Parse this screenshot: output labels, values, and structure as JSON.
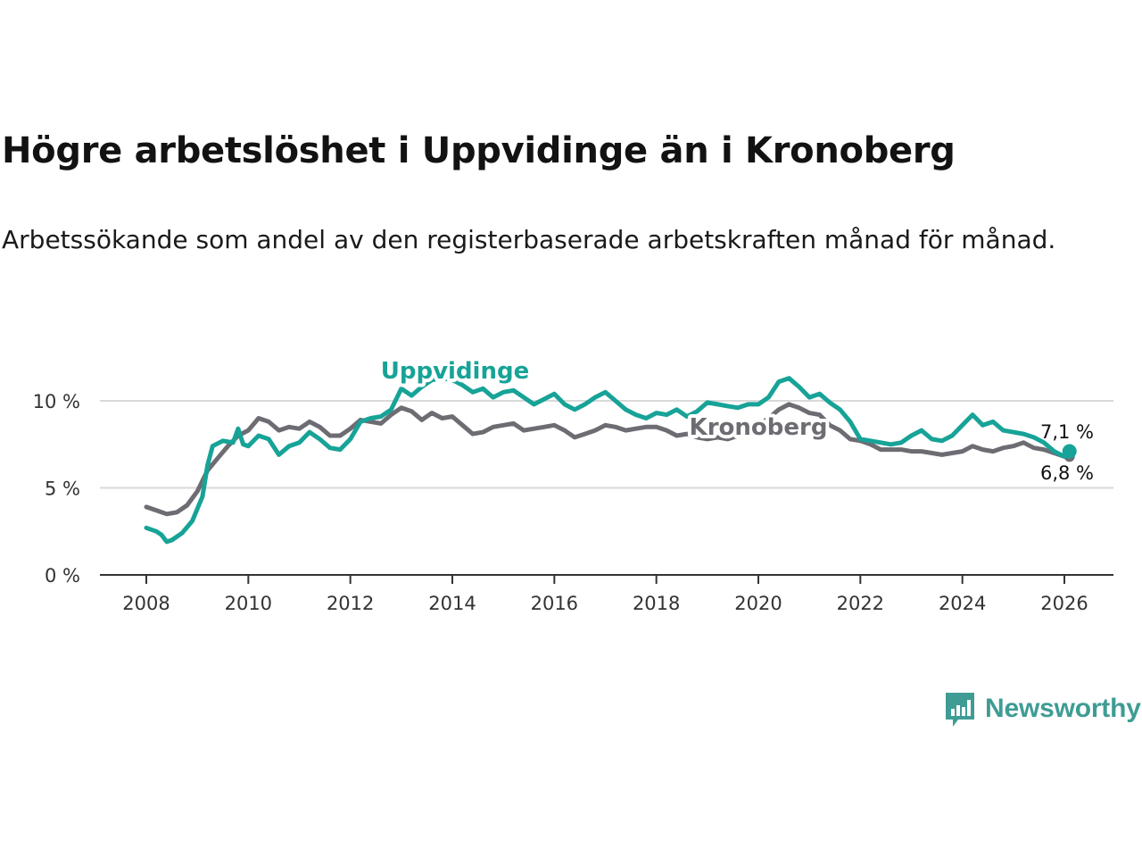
{
  "header": {
    "title": "Högre arbetslöshet i Uppvidinge än i Kronoberg",
    "subtitle": "Arbetssökande som andel av den registerbaserade arbetskraften månad för månad."
  },
  "brand": {
    "name": "Newsworthy",
    "color": "#3f9c94"
  },
  "chart_data": {
    "type": "line",
    "title": "Högre arbetslöshet i Uppvidinge än i Kronoberg",
    "xlabel": "",
    "ylabel": "",
    "xlim": [
      2007.5,
      2027.0
    ],
    "ylim": [
      0,
      10
    ],
    "grid": true,
    "x_ticks": [
      {
        "value": 2008,
        "label": "2008"
      },
      {
        "value": 2010,
        "label": "2010"
      },
      {
        "value": 2012,
        "label": "2012"
      },
      {
        "value": 2014,
        "label": "2014"
      },
      {
        "value": 2016,
        "label": "2016"
      },
      {
        "value": 2018,
        "label": "2018"
      },
      {
        "value": 2020,
        "label": "2020"
      },
      {
        "value": 2022,
        "label": "2022"
      },
      {
        "value": 2024,
        "label": "2024"
      },
      {
        "value": 2026,
        "label": "2026"
      }
    ],
    "y_ticks": [
      {
        "value": 0,
        "label": "0 %"
      },
      {
        "value": 5,
        "label": "5 %"
      },
      {
        "value": 10,
        "label": "10 %"
      }
    ],
    "series": [
      {
        "name": "Kronoberg",
        "color": "#6e6c73",
        "end_label": "6,8 %",
        "points": [
          [
            2008.0,
            3.9
          ],
          [
            2008.2,
            3.7
          ],
          [
            2008.4,
            3.5
          ],
          [
            2008.6,
            3.6
          ],
          [
            2008.8,
            4.0
          ],
          [
            2009.0,
            4.8
          ],
          [
            2009.2,
            6.0
          ],
          [
            2009.4,
            6.7
          ],
          [
            2009.6,
            7.4
          ],
          [
            2009.8,
            8.0
          ],
          [
            2010.0,
            8.3
          ],
          [
            2010.2,
            9.0
          ],
          [
            2010.4,
            8.8
          ],
          [
            2010.6,
            8.3
          ],
          [
            2010.8,
            8.5
          ],
          [
            2011.0,
            8.4
          ],
          [
            2011.2,
            8.8
          ],
          [
            2011.4,
            8.5
          ],
          [
            2011.6,
            8.0
          ],
          [
            2011.8,
            8.0
          ],
          [
            2012.0,
            8.4
          ],
          [
            2012.2,
            8.9
          ],
          [
            2012.4,
            8.8
          ],
          [
            2012.6,
            8.7
          ],
          [
            2012.8,
            9.2
          ],
          [
            2013.0,
            9.6
          ],
          [
            2013.2,
            9.4
          ],
          [
            2013.4,
            8.9
          ],
          [
            2013.6,
            9.3
          ],
          [
            2013.8,
            9.0
          ],
          [
            2014.0,
            9.1
          ],
          [
            2014.2,
            8.6
          ],
          [
            2014.4,
            8.1
          ],
          [
            2014.6,
            8.2
          ],
          [
            2014.8,
            8.5
          ],
          [
            2015.0,
            8.6
          ],
          [
            2015.2,
            8.7
          ],
          [
            2015.4,
            8.3
          ],
          [
            2015.6,
            8.4
          ],
          [
            2015.8,
            8.5
          ],
          [
            2016.0,
            8.6
          ],
          [
            2016.2,
            8.3
          ],
          [
            2016.4,
            7.9
          ],
          [
            2016.6,
            8.1
          ],
          [
            2016.8,
            8.3
          ],
          [
            2017.0,
            8.6
          ],
          [
            2017.2,
            8.5
          ],
          [
            2017.4,
            8.3
          ],
          [
            2017.6,
            8.4
          ],
          [
            2017.8,
            8.5
          ],
          [
            2018.0,
            8.5
          ],
          [
            2018.2,
            8.3
          ],
          [
            2018.4,
            8.0
          ],
          [
            2018.6,
            8.1
          ],
          [
            2018.8,
            7.9
          ],
          [
            2019.0,
            7.8
          ],
          [
            2019.2,
            7.9
          ],
          [
            2019.4,
            7.8
          ],
          [
            2019.6,
            8.0
          ],
          [
            2019.8,
            8.3
          ],
          [
            2020.0,
            8.6
          ],
          [
            2020.2,
            9.0
          ],
          [
            2020.4,
            9.5
          ],
          [
            2020.6,
            9.8
          ],
          [
            2020.8,
            9.6
          ],
          [
            2021.0,
            9.3
          ],
          [
            2021.2,
            9.2
          ],
          [
            2021.4,
            8.6
          ],
          [
            2021.6,
            8.3
          ],
          [
            2021.8,
            7.8
          ],
          [
            2022.0,
            7.7
          ],
          [
            2022.2,
            7.5
          ],
          [
            2022.4,
            7.2
          ],
          [
            2022.6,
            7.2
          ],
          [
            2022.8,
            7.2
          ],
          [
            2023.0,
            7.1
          ],
          [
            2023.2,
            7.1
          ],
          [
            2023.4,
            7.0
          ],
          [
            2023.6,
            6.9
          ],
          [
            2023.8,
            7.0
          ],
          [
            2024.0,
            7.1
          ],
          [
            2024.2,
            7.4
          ],
          [
            2024.4,
            7.2
          ],
          [
            2024.6,
            7.1
          ],
          [
            2024.8,
            7.3
          ],
          [
            2025.0,
            7.4
          ],
          [
            2025.2,
            7.6
          ],
          [
            2025.4,
            7.3
          ],
          [
            2025.6,
            7.2
          ],
          [
            2025.8,
            7.0
          ],
          [
            2026.0,
            6.8
          ],
          [
            2026.1,
            6.8
          ]
        ]
      },
      {
        "name": "Uppvidinge",
        "color": "#17a397",
        "end_label": "7,1 %",
        "points": [
          [
            2008.0,
            2.7
          ],
          [
            2008.2,
            2.5
          ],
          [
            2008.3,
            2.3
          ],
          [
            2008.4,
            1.9
          ],
          [
            2008.5,
            2.0
          ],
          [
            2008.7,
            2.4
          ],
          [
            2008.9,
            3.1
          ],
          [
            2009.1,
            4.5
          ],
          [
            2009.2,
            6.3
          ],
          [
            2009.3,
            7.4
          ],
          [
            2009.5,
            7.7
          ],
          [
            2009.7,
            7.6
          ],
          [
            2009.8,
            8.4
          ],
          [
            2009.9,
            7.5
          ],
          [
            2010.0,
            7.4
          ],
          [
            2010.2,
            8.0
          ],
          [
            2010.4,
            7.8
          ],
          [
            2010.6,
            6.9
          ],
          [
            2010.8,
            7.4
          ],
          [
            2011.0,
            7.6
          ],
          [
            2011.2,
            8.2
          ],
          [
            2011.4,
            7.8
          ],
          [
            2011.6,
            7.3
          ],
          [
            2011.8,
            7.2
          ],
          [
            2012.0,
            7.8
          ],
          [
            2012.2,
            8.8
          ],
          [
            2012.4,
            9.0
          ],
          [
            2012.6,
            9.1
          ],
          [
            2012.8,
            9.5
          ],
          [
            2013.0,
            10.7
          ],
          [
            2013.2,
            10.3
          ],
          [
            2013.4,
            10.8
          ],
          [
            2013.6,
            11.2
          ],
          [
            2013.8,
            11.3
          ],
          [
            2014.0,
            11.2
          ],
          [
            2014.2,
            10.9
          ],
          [
            2014.4,
            10.5
          ],
          [
            2014.6,
            10.7
          ],
          [
            2014.8,
            10.2
          ],
          [
            2015.0,
            10.5
          ],
          [
            2015.2,
            10.6
          ],
          [
            2015.4,
            10.2
          ],
          [
            2015.6,
            9.8
          ],
          [
            2015.8,
            10.1
          ],
          [
            2016.0,
            10.4
          ],
          [
            2016.2,
            9.8
          ],
          [
            2016.4,
            9.5
          ],
          [
            2016.6,
            9.8
          ],
          [
            2016.8,
            10.2
          ],
          [
            2017.0,
            10.5
          ],
          [
            2017.2,
            10.0
          ],
          [
            2017.4,
            9.5
          ],
          [
            2017.6,
            9.2
          ],
          [
            2017.8,
            9.0
          ],
          [
            2018.0,
            9.3
          ],
          [
            2018.2,
            9.2
          ],
          [
            2018.4,
            9.5
          ],
          [
            2018.6,
            9.1
          ],
          [
            2018.8,
            9.4
          ],
          [
            2019.0,
            9.9
          ],
          [
            2019.2,
            9.8
          ],
          [
            2019.4,
            9.7
          ],
          [
            2019.6,
            9.6
          ],
          [
            2019.8,
            9.8
          ],
          [
            2020.0,
            9.8
          ],
          [
            2020.2,
            10.2
          ],
          [
            2020.4,
            11.1
          ],
          [
            2020.6,
            11.3
          ],
          [
            2020.8,
            10.8
          ],
          [
            2021.0,
            10.2
          ],
          [
            2021.2,
            10.4
          ],
          [
            2021.4,
            9.9
          ],
          [
            2021.6,
            9.5
          ],
          [
            2021.8,
            8.8
          ],
          [
            2022.0,
            7.8
          ],
          [
            2022.2,
            7.7
          ],
          [
            2022.4,
            7.6
          ],
          [
            2022.6,
            7.5
          ],
          [
            2022.8,
            7.6
          ],
          [
            2023.0,
            8.0
          ],
          [
            2023.2,
            8.3
          ],
          [
            2023.4,
            7.8
          ],
          [
            2023.6,
            7.7
          ],
          [
            2023.8,
            8.0
          ],
          [
            2024.0,
            8.6
          ],
          [
            2024.2,
            9.2
          ],
          [
            2024.4,
            8.6
          ],
          [
            2024.6,
            8.8
          ],
          [
            2024.8,
            8.3
          ],
          [
            2025.0,
            8.2
          ],
          [
            2025.2,
            8.1
          ],
          [
            2025.4,
            7.9
          ],
          [
            2025.6,
            7.6
          ],
          [
            2025.8,
            7.1
          ],
          [
            2026.0,
            6.8
          ],
          [
            2026.1,
            7.1
          ]
        ]
      }
    ]
  }
}
